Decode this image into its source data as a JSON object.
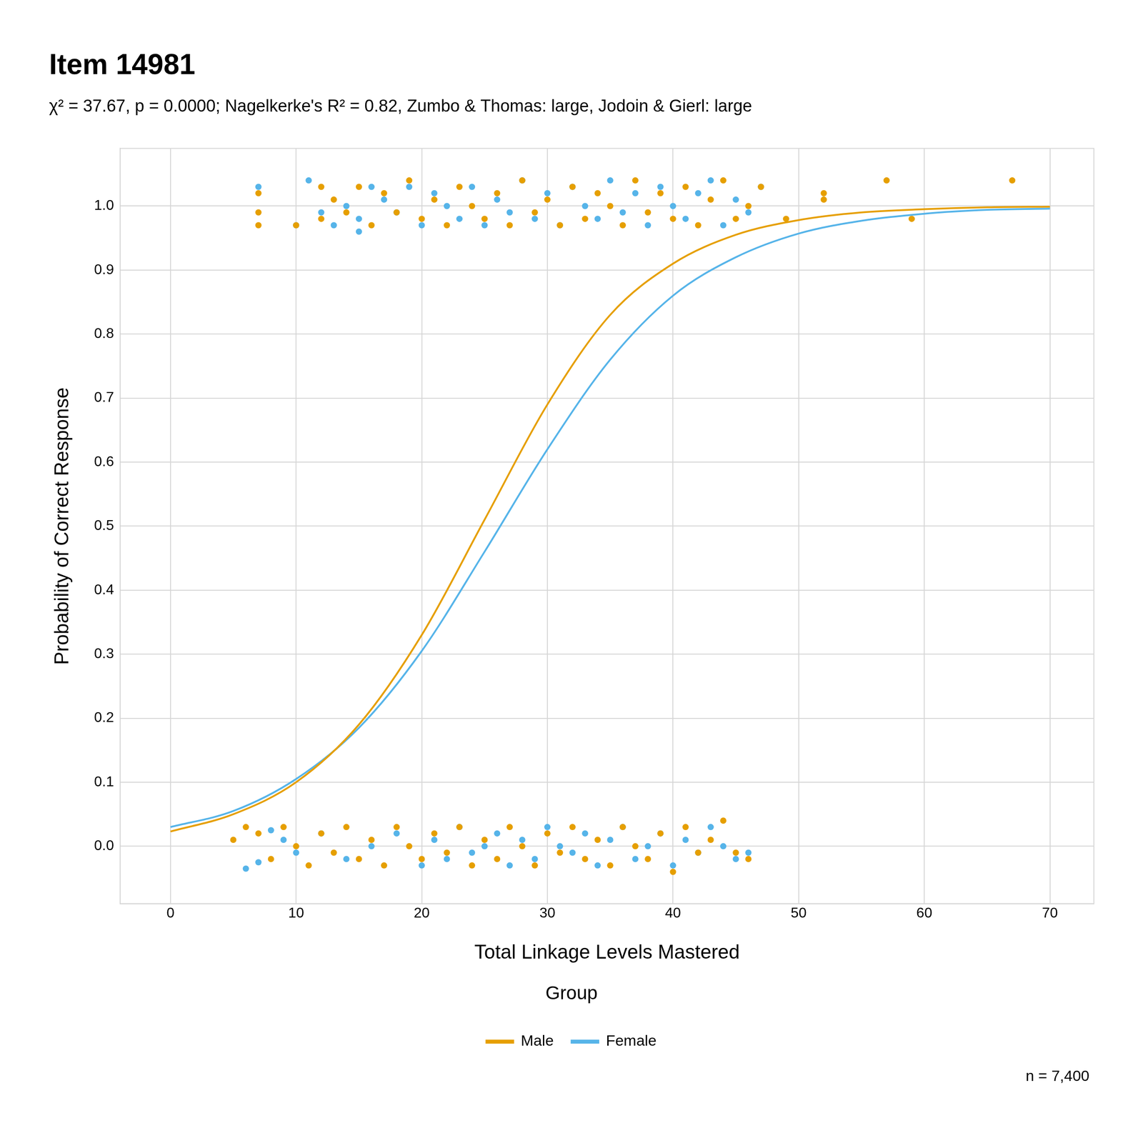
{
  "chart_data": {
    "type": "scatter",
    "title": "Item 14981",
    "subtitle": "χ² = 37.67, p = 0.0000; Nagelkerke's R² = 0.82, Zumbo & Thomas: large, Jodoin & Gierl: large",
    "x_label": "Total Linkage Levels Mastered",
    "y_label": "Probability of Correct Response",
    "caption": "n = 7,400",
    "legend_title": "Group",
    "legend": "bottom",
    "grid": true,
    "xlim": [
      -4,
      73.5
    ],
    "xticks": [
      0,
      10,
      20,
      30,
      40,
      50,
      60,
      70
    ],
    "ylim": [
      -0.09,
      1.09
    ],
    "yticks": [
      {
        "value": 0,
        "label": "0.0"
      },
      0.1,
      0.2,
      0.3,
      0.4,
      0.5,
      0.6,
      0.7,
      0.8,
      0.9,
      {
        "value": 1,
        "label": "1.0"
      }
    ],
    "series": [
      {
        "name": "Male",
        "color": "#E69F00",
        "type": "line",
        "line_style": "solid",
        "marker": "circle",
        "x": [
          0,
          5,
          10,
          15,
          20,
          25,
          30,
          35,
          40,
          45,
          50,
          55,
          60,
          65,
          70
        ],
        "values": [
          0.023,
          0.05,
          0.1,
          0.19,
          0.33,
          0.51,
          0.69,
          0.83,
          0.91,
          0.955,
          0.978,
          0.99,
          0.995,
          0.998,
          0.999
        ],
        "points": {
          "x": [
            7,
            7,
            7,
            10,
            12,
            12,
            13,
            14,
            15,
            16,
            17,
            18,
            19,
            20,
            21,
            22,
            23,
            24,
            25,
            26,
            27,
            28,
            29,
            30,
            31,
            32,
            33,
            34,
            35,
            36,
            37,
            38,
            39,
            40,
            41,
            42,
            43,
            44,
            45,
            46,
            47,
            49,
            52,
            52,
            57,
            59,
            67,
            5,
            6,
            7,
            8,
            9,
            10,
            11,
            12,
            13,
            14,
            15,
            16,
            17,
            18,
            19,
            20,
            21,
            22,
            23,
            24,
            25,
            26,
            27,
            28,
            29,
            30,
            31,
            32,
            33,
            34,
            35,
            36,
            37,
            38,
            39,
            40,
            41,
            42,
            43,
            44,
            45,
            46
          ],
          "y": [
            0.99,
            1.02,
            0.97,
            0.97,
            1.03,
            0.98,
            1.01,
            0.99,
            1.03,
            0.97,
            1.02,
            0.99,
            1.04,
            0.98,
            1.01,
            0.97,
            1.03,
            1.0,
            0.98,
            1.02,
            0.97,
            1.04,
            0.99,
            1.01,
            0.97,
            1.03,
            0.98,
            1.02,
            1.0,
            0.97,
            1.04,
            0.99,
            1.02,
            0.98,
            1.03,
            0.97,
            1.01,
            1.04,
            0.98,
            1.0,
            1.03,
            0.98,
            1.02,
            1.01,
            1.04,
            0.98,
            1.04,
            0.01,
            0.03,
            0.02,
            -0.02,
            0.03,
            0.0,
            -0.03,
            0.02,
            -0.01,
            0.03,
            -0.02,
            0.01,
            -0.03,
            0.03,
            0.0,
            -0.02,
            0.02,
            -0.01,
            0.03,
            -0.03,
            0.01,
            -0.02,
            0.03,
            0.0,
            -0.03,
            0.02,
            -0.01,
            0.03,
            -0.02,
            0.01,
            -0.03,
            0.03,
            0.0,
            -0.02,
            0.02,
            -0.04,
            0.03,
            -0.01,
            0.01,
            0.04,
            -0.01,
            -0.02
          ]
        }
      },
      {
        "name": "Female",
        "color": "#56B4E9",
        "type": "line",
        "line_style": "solid",
        "marker": "circle",
        "x": [
          0,
          5,
          10,
          15,
          20,
          25,
          30,
          35,
          40,
          45,
          50,
          55,
          60,
          65,
          70
        ],
        "values": [
          0.03,
          0.055,
          0.105,
          0.185,
          0.305,
          0.46,
          0.62,
          0.76,
          0.86,
          0.92,
          0.957,
          0.977,
          0.988,
          0.994,
          0.996
        ],
        "points": {
          "x": [
            7,
            10,
            11,
            12,
            13,
            14,
            15,
            15,
            16,
            17,
            18,
            19,
            20,
            21,
            22,
            23,
            24,
            25,
            26,
            27,
            28,
            29,
            30,
            31,
            32,
            33,
            34,
            35,
            36,
            37,
            38,
            39,
            40,
            41,
            42,
            43,
            44,
            45,
            46,
            47,
            6,
            7,
            8,
            9,
            10,
            12,
            14,
            16,
            18,
            20,
            21,
            22,
            23,
            24,
            25,
            26,
            27,
            28,
            29,
            30,
            31,
            32,
            33,
            34,
            35,
            36,
            37,
            38,
            39,
            40,
            41,
            42,
            43,
            44,
            45,
            46
          ],
          "y": [
            1.03,
            0.97,
            1.04,
            0.99,
            0.97,
            1.0,
            0.96,
            0.98,
            1.03,
            1.01,
            0.99,
            1.03,
            0.97,
            1.02,
            1.0,
            0.98,
            1.03,
            0.97,
            1.01,
            0.99,
            1.04,
            0.98,
            1.02,
            0.97,
            1.03,
            1.0,
            0.98,
            1.04,
            0.99,
            1.02,
            0.97,
            1.03,
            1.0,
            0.98,
            1.02,
            1.04,
            0.97,
            1.01,
            0.99,
            1.03,
            -0.035,
            -0.025,
            0.025,
            0.01,
            -0.01,
            0.02,
            -0.02,
            0.0,
            0.02,
            -0.03,
            0.01,
            -0.02,
            0.03,
            -0.01,
            0.0,
            0.02,
            -0.03,
            0.01,
            -0.02,
            0.03,
            0.0,
            -0.01,
            0.02,
            -0.03,
            0.01,
            0.03,
            -0.02,
            0.0,
            0.02,
            -0.03,
            0.01,
            -0.01,
            0.03,
            0.0,
            -0.02,
            -0.01
          ]
        }
      }
    ]
  }
}
